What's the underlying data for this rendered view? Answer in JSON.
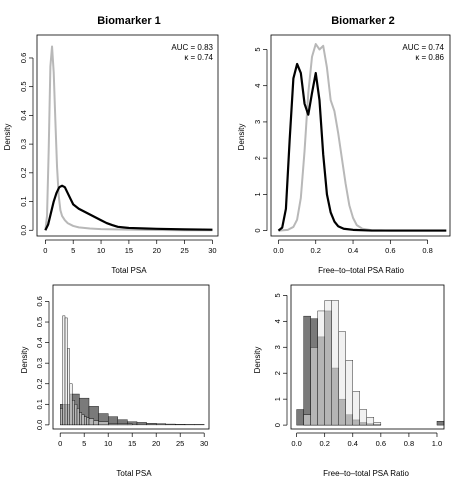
{
  "colors": {
    "case_curve": "#000000",
    "control_curve": "#b8b8b8",
    "hist_dark": "#7a7a7a",
    "hist_mid": "#b3b3b3",
    "hist_light": "#e6e6e6"
  },
  "chart_data": [
    {
      "type": "line",
      "title": "Biomarker 1",
      "xlabel": "Total PSA",
      "ylabel": "Density",
      "xlim": [
        -1.5,
        31
      ],
      "ylim": [
        -0.02,
        0.68
      ],
      "xticks": [
        0,
        5,
        10,
        15,
        20,
        25,
        30
      ],
      "yticks": [
        0.0,
        0.1,
        0.2,
        0.3,
        0.4,
        0.5,
        0.6
      ],
      "grid": false,
      "annotations": [
        "AUC = 0.83",
        "κ = 0.74"
      ],
      "series": [
        {
          "color": "#b8b8b8",
          "x": [
            0,
            0.3,
            0.6,
            0.9,
            1.2,
            1.5,
            1.8,
            2.1,
            2.4,
            2.7,
            3,
            3.5,
            4,
            5,
            6,
            8,
            10,
            15,
            20,
            25,
            30
          ],
          "y": [
            0.0,
            0.05,
            0.28,
            0.57,
            0.64,
            0.55,
            0.38,
            0.22,
            0.12,
            0.07,
            0.05,
            0.035,
            0.025,
            0.015,
            0.01,
            0.006,
            0.004,
            0.002,
            0.001,
            0.0,
            0.0
          ]
        },
        {
          "color": "#000000",
          "x": [
            0,
            0.5,
            1,
            1.5,
            2,
            2.5,
            3,
            3.5,
            4,
            4.5,
            5,
            6,
            7,
            8,
            9,
            10,
            11,
            12,
            13,
            15,
            18,
            20,
            25,
            30
          ],
          "y": [
            0.0,
            0.02,
            0.06,
            0.1,
            0.13,
            0.15,
            0.155,
            0.15,
            0.13,
            0.11,
            0.09,
            0.075,
            0.065,
            0.055,
            0.045,
            0.035,
            0.025,
            0.018,
            0.012,
            0.008,
            0.006,
            0.005,
            0.003,
            0.002
          ]
        }
      ]
    },
    {
      "type": "line",
      "title": "Biomarker 2",
      "xlabel": "Free–to–total PSA Ratio",
      "ylabel": "Density",
      "xlim": [
        -0.04,
        0.92
      ],
      "ylim": [
        -0.15,
        5.4
      ],
      "xticks": [
        0.0,
        0.2,
        0.4,
        0.6,
        0.8
      ],
      "yticks": [
        0,
        1,
        2,
        3,
        4,
        5
      ],
      "grid": false,
      "annotations": [
        "AUC = 0.74",
        "κ = 0.86"
      ],
      "series": [
        {
          "color": "#b8b8b8",
          "x": [
            0,
            0.05,
            0.08,
            0.1,
            0.12,
            0.14,
            0.16,
            0.18,
            0.2,
            0.22,
            0.24,
            0.26,
            0.28,
            0.3,
            0.32,
            0.34,
            0.36,
            0.38,
            0.4,
            0.42,
            0.45,
            0.5,
            0.6,
            0.7,
            0.8,
            0.9
          ],
          "y": [
            0.0,
            0.02,
            0.1,
            0.3,
            0.9,
            2.2,
            3.8,
            4.8,
            5.15,
            5.0,
            5.1,
            4.5,
            3.6,
            3.3,
            2.7,
            2.0,
            1.3,
            0.7,
            0.35,
            0.15,
            0.05,
            0.01,
            0.0,
            0.0,
            0.0,
            0.0
          ]
        },
        {
          "color": "#000000",
          "x": [
            0,
            0.02,
            0.04,
            0.06,
            0.08,
            0.1,
            0.12,
            0.14,
            0.16,
            0.18,
            0.2,
            0.22,
            0.24,
            0.26,
            0.28,
            0.3,
            0.32,
            0.35,
            0.4,
            0.5,
            0.6,
            0.7,
            0.8,
            0.9
          ],
          "y": [
            0.0,
            0.08,
            0.6,
            2.5,
            4.2,
            4.6,
            4.35,
            3.5,
            3.2,
            3.8,
            4.35,
            3.6,
            2.1,
            1.0,
            0.5,
            0.25,
            0.12,
            0.05,
            0.02,
            0.0,
            0.0,
            0.0,
            0.0,
            0.0
          ]
        }
      ]
    },
    {
      "type": "bar",
      "title": "",
      "xlabel": "Total PSA",
      "ylabel": "Density",
      "xlim": [
        -1.5,
        31
      ],
      "ylim": [
        -0.02,
        0.68
      ],
      "xticks": [
        0,
        5,
        10,
        15,
        20,
        25,
        30
      ],
      "yticks": [
        0.0,
        0.1,
        0.2,
        0.3,
        0.4,
        0.5,
        0.6
      ],
      "grid": false,
      "series": [
        {
          "color": "#7a7a7a",
          "bin_edges": [
            0,
            2,
            4,
            6,
            8,
            10,
            12,
            14,
            16,
            18,
            20,
            22,
            24,
            26,
            28,
            30
          ],
          "values": [
            0.1,
            0.15,
            0.13,
            0.09,
            0.055,
            0.04,
            0.025,
            0.015,
            0.012,
            0.008,
            0.006,
            0.004,
            0.003,
            0.002,
            0.002
          ]
        },
        {
          "color": "#e6e6e6",
          "bin_edges": [
            0,
            0.5,
            1,
            1.5,
            2,
            2.5,
            3,
            3.5,
            4,
            4.5,
            5,
            5.5,
            6,
            7,
            8,
            10,
            15
          ],
          "values": [
            0.08,
            0.53,
            0.52,
            0.37,
            0.2,
            0.12,
            0.1,
            0.08,
            0.06,
            0.05,
            0.04,
            0.035,
            0.03,
            0.02,
            0.015,
            0.006
          ]
        }
      ]
    },
    {
      "type": "bar",
      "title": "",
      "xlabel": "Free–to–total PSA Ratio",
      "ylabel": "Density",
      "xlim": [
        -0.04,
        1.05
      ],
      "ylim": [
        -0.15,
        5.4
      ],
      "xticks": [
        0.0,
        0.2,
        0.4,
        0.6,
        0.8,
        1.0
      ],
      "yticks": [
        0,
        1,
        2,
        3,
        4,
        5
      ],
      "grid": false,
      "series": [
        {
          "color": "#7a7a7a",
          "bin_edges": [
            0,
            0.05,
            0.1,
            0.15,
            0.2,
            0.25,
            0.3,
            0.35,
            0.4,
            0.45,
            0.5,
            0.55,
            0.6,
            1.0,
            1.05
          ],
          "values": [
            0.6,
            4.2,
            4.1,
            3.4,
            4.4,
            2.2,
            1.0,
            0.4,
            0.2,
            0.1,
            0.05,
            0.03,
            0.0,
            0.15
          ]
        },
        {
          "color": "#e6e6e6",
          "bin_edges": [
            0.05,
            0.1,
            0.15,
            0.2,
            0.25,
            0.3,
            0.35,
            0.4,
            0.45,
            0.5,
            0.55,
            0.6
          ],
          "values": [
            0.4,
            3.0,
            4.4,
            4.8,
            4.8,
            3.6,
            2.5,
            1.3,
            0.6,
            0.3,
            0.1
          ]
        }
      ]
    }
  ]
}
